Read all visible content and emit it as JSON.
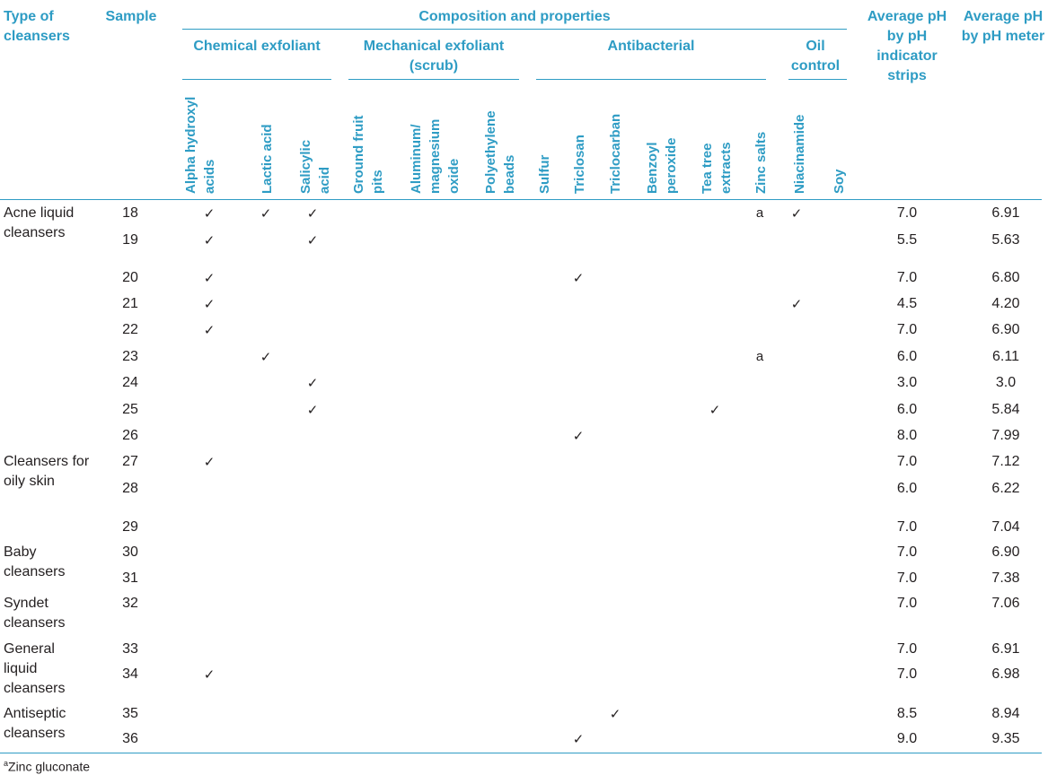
{
  "headers": {
    "type": "Type of cleansers",
    "sample": "Sample",
    "composition": "Composition and properties",
    "chemical": "Chemical exfoliant",
    "mechanical": "Mechanical exfoliant (scrub)",
    "antibacterial": "Antibacterial",
    "oil": "Oil control",
    "ph_strips": "Average pH by pH indicator strips",
    "ph_meter": "Average pH by pH meter",
    "columns": [
      "Alpha hydroxyl acids",
      "Lactic acid",
      "Salicylic acid",
      "Ground fruit pits",
      "Aluminum/ magnesium oxide",
      "Polyethylene beads",
      "Sulfur",
      "Triclosan",
      "Triclocarban",
      "Benzoyl peroxide",
      "Tea tree extracts",
      "Zinc salts",
      "Niacinamide",
      "Soy"
    ]
  },
  "groups": [
    "Acne liquid cleansers",
    "Cleansers for oily skin",
    "Baby cleansers",
    "Syndet cleansers",
    "General liquid cleansers",
    "Antiseptic cleansers"
  ],
  "check_symbol": "✓",
  "rows": [
    {
      "sample": "18",
      "ph_strip": "7.0",
      "ph_meter": "6.91"
    },
    {
      "sample": "19",
      "ph_strip": "5.5",
      "ph_meter": "5.63"
    },
    {
      "sample": "20",
      "ph_strip": "7.0",
      "ph_meter": "6.80"
    },
    {
      "sample": "21",
      "ph_strip": "4.5",
      "ph_meter": "4.20"
    },
    {
      "sample": "22",
      "ph_strip": "7.0",
      "ph_meter": "6.90"
    },
    {
      "sample": "23",
      "ph_strip": "6.0",
      "ph_meter": "6.11"
    },
    {
      "sample": "24",
      "ph_strip": "3.0",
      "ph_meter": "3.0"
    },
    {
      "sample": "25",
      "ph_strip": "6.0",
      "ph_meter": "5.84"
    },
    {
      "sample": "26",
      "ph_strip": "8.0",
      "ph_meter": "7.99"
    },
    {
      "sample": "27",
      "ph_strip": "7.0",
      "ph_meter": "7.12"
    },
    {
      "sample": "28",
      "ph_strip": "6.0",
      "ph_meter": "6.22"
    },
    {
      "sample": "29",
      "ph_strip": "7.0",
      "ph_meter": "7.04"
    },
    {
      "sample": "30",
      "ph_strip": "7.0",
      "ph_meter": "6.90"
    },
    {
      "sample": "31",
      "ph_strip": "7.0",
      "ph_meter": "7.38"
    },
    {
      "sample": "32",
      "ph_strip": "7.0",
      "ph_meter": "7.06"
    },
    {
      "sample": "33",
      "ph_strip": "7.0",
      "ph_meter": "6.91"
    },
    {
      "sample": "34",
      "ph_strip": "7.0",
      "ph_meter": "6.98"
    },
    {
      "sample": "35",
      "ph_strip": "8.5",
      "ph_meter": "8.94"
    },
    {
      "sample": "36",
      "ph_strip": "9.0",
      "ph_meter": "9.35"
    }
  ],
  "marks": {
    "row18": {
      "c1": "✓",
      "c2": "✓",
      "c3": "✓",
      "c12": "a",
      "c13": "✓"
    },
    "row19": {
      "c1": "✓",
      "c3": "✓"
    },
    "row20": {
      "c1": "✓",
      "c8": "✓"
    },
    "row21": {
      "c1": "✓",
      "c13": "✓"
    },
    "row22": {
      "c1": "✓"
    },
    "row23": {
      "c2": "✓",
      "c12": "a"
    },
    "row24": {
      "c3": "✓"
    },
    "row25": {
      "c3": "✓",
      "c11": "✓"
    },
    "row26": {
      "c8": "✓"
    },
    "row27": {
      "c1": "✓"
    },
    "row34": {
      "c1": "✓"
    },
    "row35": {
      "c9": "✓"
    },
    "row36": {
      "c8": "✓"
    }
  },
  "footnote": {
    "sup": "a",
    "text": "Zinc gluconate"
  },
  "colors": {
    "accent": "#2e9cc4",
    "text": "#231f20"
  }
}
